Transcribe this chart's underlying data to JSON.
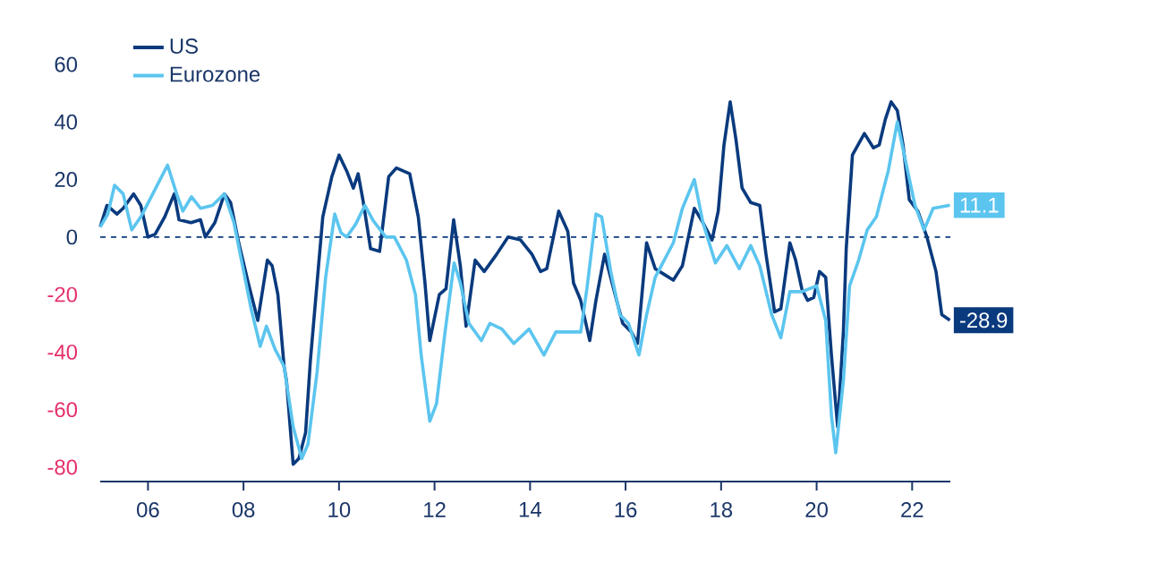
{
  "chart_data": {
    "type": "line",
    "series": [
      {
        "name": "US",
        "color": "#0a3a7e",
        "x": [
          2005.0,
          2005.14,
          2005.35,
          2005.48,
          2005.7,
          2005.85,
          2006.0,
          2006.15,
          2006.35,
          2006.55,
          2006.65,
          2006.9,
          2007.1,
          2007.2,
          2007.4,
          2007.6,
          2007.73,
          2007.9,
          2008.1,
          2008.3,
          2008.5,
          2008.6,
          2008.72,
          2008.85,
          2008.9,
          2009.04,
          2009.16,
          2009.3,
          2009.4,
          2009.54,
          2009.66,
          2009.85,
          2010.0,
          2010.16,
          2010.3,
          2010.4,
          2010.5,
          2010.66,
          2010.85,
          2011.04,
          2011.2,
          2011.48,
          2011.66,
          2011.8,
          2011.9,
          2012.1,
          2012.24,
          2012.4,
          2012.54,
          2012.66,
          2012.85,
          2013.04,
          2013.3,
          2013.54,
          2013.8,
          2014.04,
          2014.22,
          2014.35,
          2014.6,
          2014.79,
          2014.91,
          2015.06,
          2015.25,
          2015.38,
          2015.56,
          2015.75,
          2015.94,
          2016.12,
          2016.25,
          2016.44,
          2016.62,
          2016.81,
          2017.0,
          2017.19,
          2017.44,
          2017.62,
          2017.81,
          2017.94,
          2018.06,
          2018.19,
          2018.31,
          2018.44,
          2018.62,
          2018.81,
          2018.94,
          2019.12,
          2019.25,
          2019.44,
          2019.56,
          2019.69,
          2019.81,
          2019.94,
          2020.06,
          2020.19,
          2020.31,
          2020.44,
          2020.56,
          2020.62,
          2020.75,
          2021.0,
          2021.19,
          2021.31,
          2021.44,
          2021.56,
          2021.69,
          2021.81,
          2021.94,
          2022.12,
          2022.31,
          2022.5,
          2022.62,
          2022.79
        ],
        "values": [
          3.5,
          11,
          8,
          10,
          15,
          11,
          0,
          1,
          7,
          15,
          6,
          5,
          6,
          0,
          5,
          15,
          12,
          -2,
          -16,
          -29,
          -8,
          -10,
          -20,
          -45,
          -50,
          -79,
          -77,
          -68,
          -43,
          -16,
          7,
          21,
          28.5,
          23,
          17,
          22,
          13,
          -4,
          -5,
          21,
          24,
          22,
          7,
          -16,
          -36,
          -20,
          -18,
          6,
          -10,
          -31,
          -8,
          -12,
          -6,
          0,
          -1,
          -6,
          -12,
          -11,
          9,
          2,
          -16,
          -22,
          -36,
          -22,
          -6,
          -18,
          -30,
          -33,
          -37,
          -2,
          -11,
          -13,
          -15,
          -10,
          10,
          5,
          -1,
          9,
          32,
          47,
          34,
          17,
          12,
          11,
          -6,
          -26,
          -25,
          -2,
          -8,
          -18,
          -22,
          -21,
          -12,
          -14,
          -41,
          -66,
          -33,
          -4,
          28.5,
          36,
          31,
          32,
          41,
          47,
          44,
          32,
          13,
          9,
          0,
          -12,
          -27,
          -28.9
        ]
      },
      {
        "name": "Eurozone",
        "color": "#5bc5ef",
        "x": [
          2005.0,
          2005.16,
          2005.3,
          2005.48,
          2005.66,
          2005.85,
          2006.1,
          2006.41,
          2006.6,
          2006.73,
          2006.91,
          2007.1,
          2007.35,
          2007.6,
          2007.8,
          2007.98,
          2008.16,
          2008.35,
          2008.48,
          2008.66,
          2008.85,
          2009.04,
          2009.22,
          2009.35,
          2009.54,
          2009.72,
          2009.91,
          2010.04,
          2010.16,
          2010.35,
          2010.54,
          2010.72,
          2010.98,
          2011.16,
          2011.41,
          2011.6,
          2011.72,
          2011.9,
          2012.04,
          2012.22,
          2012.41,
          2012.54,
          2012.72,
          2012.98,
          2013.16,
          2013.41,
          2013.66,
          2013.98,
          2014.29,
          2014.54,
          2014.85,
          2015.06,
          2015.19,
          2015.38,
          2015.5,
          2015.69,
          2015.88,
          2016.06,
          2016.28,
          2016.44,
          2016.62,
          2016.81,
          2017.0,
          2017.19,
          2017.44,
          2017.62,
          2017.88,
          2018.12,
          2018.38,
          2018.62,
          2018.81,
          2019.06,
          2019.25,
          2019.44,
          2019.69,
          2020.0,
          2020.19,
          2020.31,
          2020.4,
          2020.56,
          2020.69,
          2020.88,
          2021.06,
          2021.25,
          2021.5,
          2021.69,
          2021.88,
          2022.06,
          2022.25,
          2022.44,
          2022.79
        ],
        "values": [
          3.5,
          8,
          18,
          15,
          2.5,
          7,
          15,
          25,
          15,
          9,
          14,
          10,
          11,
          15,
          5,
          -10,
          -25,
          -38,
          -31,
          -39,
          -45,
          -66,
          -77,
          -72,
          -47,
          -14,
          8,
          1.5,
          0,
          4.5,
          11,
          5.6,
          0,
          0,
          -8,
          -20,
          -41,
          -64,
          -58,
          -33,
          -9,
          -16,
          -30,
          -36,
          -30,
          -32,
          -37,
          -32,
          -41,
          -33,
          -33,
          -33,
          -18,
          8,
          7,
          -12,
          -27,
          -30,
          -41,
          -27,
          -14,
          -8,
          -2,
          10,
          20,
          5,
          -9,
          -3,
          -11,
          -3,
          -10,
          -27,
          -35,
          -19,
          -19,
          -17,
          -29,
          -62,
          -75,
          -50,
          -17,
          -8,
          2.5,
          7,
          23,
          40,
          25,
          11,
          2.5,
          10,
          11.1
        ]
      }
    ],
    "xlim": [
      2005.0,
      2022.8
    ],
    "ylim": [
      -85,
      60
    ],
    "xticks": [
      {
        "value": 2006,
        "label": "06"
      },
      {
        "value": 2008,
        "label": "08"
      },
      {
        "value": 2010,
        "label": "10"
      },
      {
        "value": 2012,
        "label": "12"
      },
      {
        "value": 2014,
        "label": "14"
      },
      {
        "value": 2016,
        "label": "16"
      },
      {
        "value": 2018,
        "label": "18"
      },
      {
        "value": 2020,
        "label": "20"
      },
      {
        "value": 2022,
        "label": "22"
      }
    ],
    "yticks": [
      -80,
      -60,
      -40,
      -20,
      0,
      20,
      40,
      60
    ],
    "ref_lines": [
      {
        "axis": "y",
        "value": 0,
        "color": "#0a3a7e",
        "line_style": "dashed"
      }
    ],
    "annotations": [
      {
        "text": "-28.9",
        "x": 2022.79,
        "y": -28.9
      },
      {
        "text": "11.1",
        "x": 2022.79,
        "y": 11.1
      }
    ],
    "legend": "top left",
    "marker": "none",
    "line_style": "solid"
  }
}
